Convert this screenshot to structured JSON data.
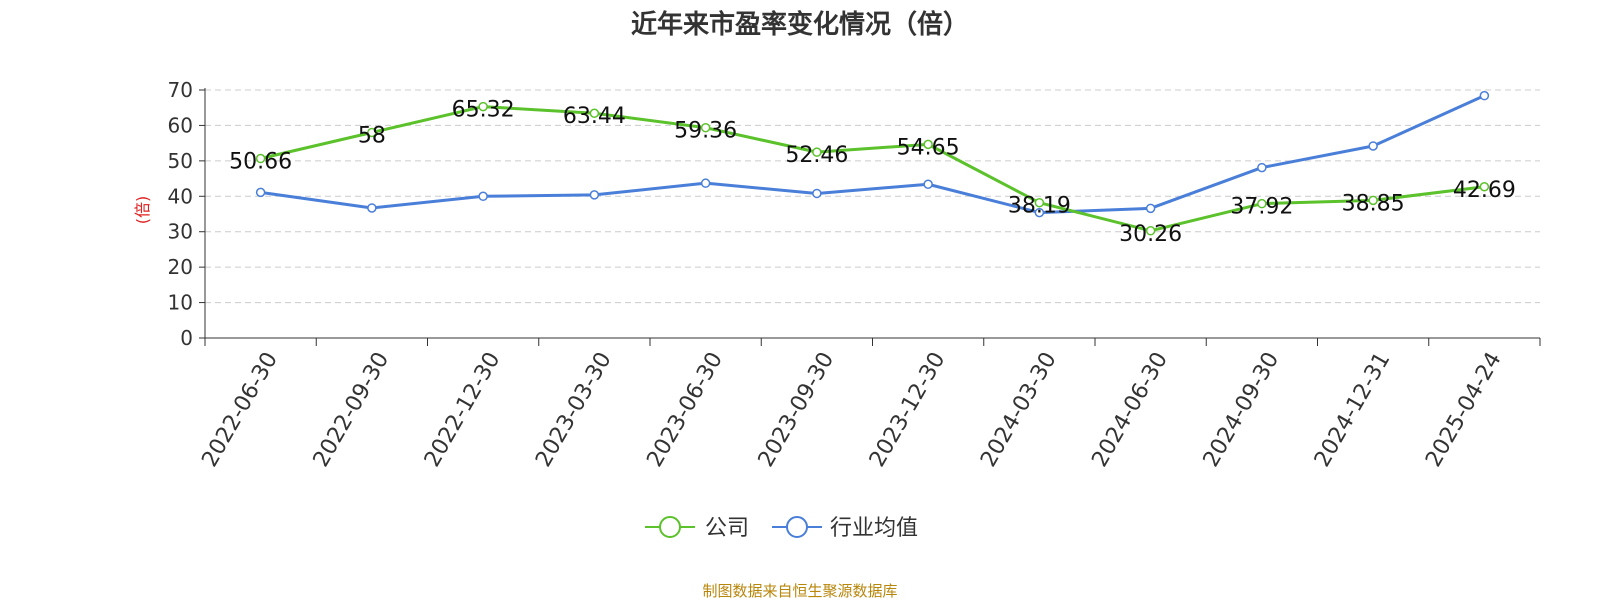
{
  "title": "近年来市盈率变化情况（倍）",
  "footer": "制图数据来自恒生聚源数据库",
  "chart_data": {
    "type": "line",
    "categories": [
      "2022-06-30",
      "2022-09-30",
      "2022-12-30",
      "2023-03-30",
      "2023-06-30",
      "2023-09-30",
      "2023-12-30",
      "2024-03-30",
      "2024-06-30",
      "2024-09-30",
      "2024-12-31",
      "2025-04-24"
    ],
    "ylabel": "(倍)",
    "ylim": [
      0,
      70
    ],
    "yticks": [
      0,
      10,
      20,
      30,
      40,
      50,
      60,
      70
    ],
    "grid": true,
    "legend_position": "bottom",
    "series": [
      {
        "name": "公司",
        "color": "#5bc22b",
        "values": [
          50.66,
          58,
          65.32,
          63.44,
          59.36,
          52.46,
          54.65,
          38.19,
          30.26,
          37.92,
          38.85,
          42.69
        ],
        "labels": [
          "50.66",
          "58",
          "65.32",
          "63.44",
          "59.36",
          "52.46",
          "54.65",
          "38.19",
          "30.26",
          "37.92",
          "38.85",
          "42.69"
        ]
      },
      {
        "name": "行业均值",
        "color": "#4a7fd9",
        "values": [
          41.1,
          36.7,
          40.0,
          40.4,
          43.7,
          40.8,
          43.4,
          35.4,
          36.6,
          48.1,
          54.2,
          68.4
        ]
      }
    ]
  }
}
